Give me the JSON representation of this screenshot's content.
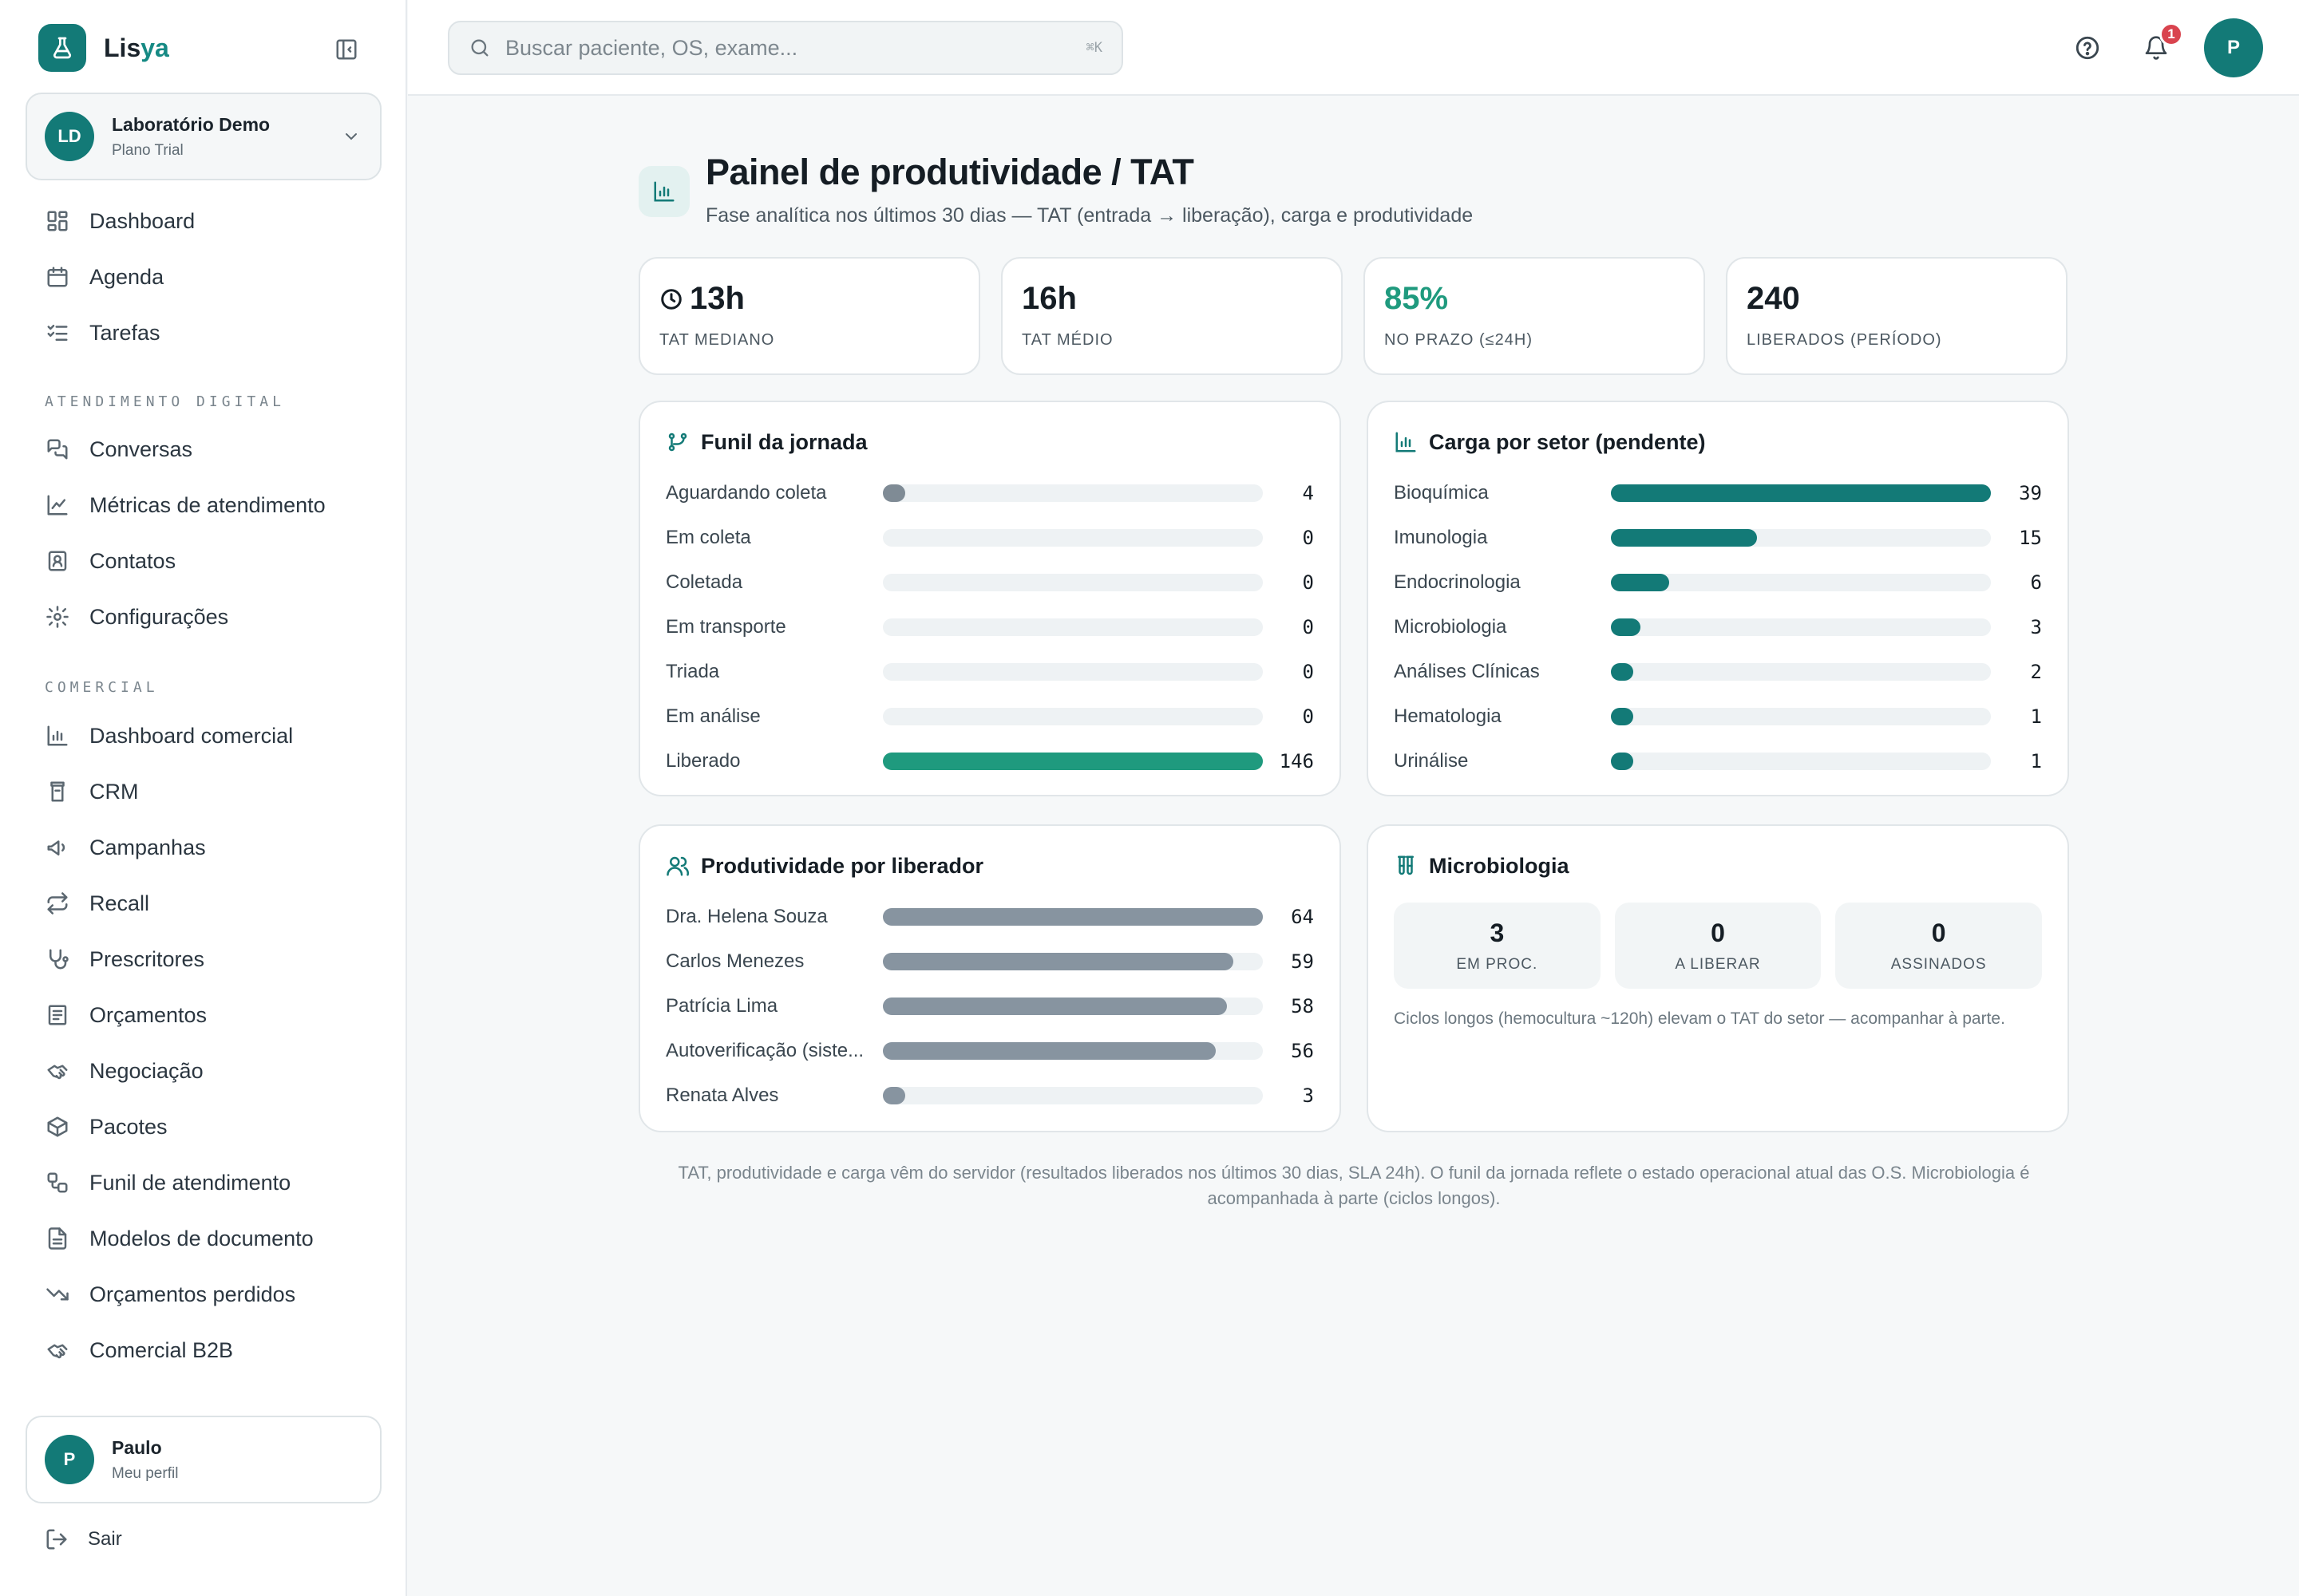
{
  "app": {
    "brand_prefix": "Lis",
    "brand_suffix": "ya"
  },
  "org": {
    "initials": "LD",
    "name": "Laboratório Demo",
    "plan": "Plano Trial"
  },
  "nav_main": [
    {
      "label": "Dashboard",
      "icon": "layout-dashboard-icon"
    },
    {
      "label": "Agenda",
      "icon": "calendar-icon"
    },
    {
      "label": "Tarefas",
      "icon": "list-checks-icon"
    }
  ],
  "section_digital": "ATENDIMENTO DIGITAL",
  "nav_digital": [
    {
      "label": "Conversas",
      "icon": "messages-icon"
    },
    {
      "label": "Métricas de atendimento",
      "icon": "line-chart-icon"
    },
    {
      "label": "Contatos",
      "icon": "contact-icon"
    },
    {
      "label": "Configurações",
      "icon": "gear-icon"
    }
  ],
  "section_comercial": "COMERCIAL",
  "nav_comercial": [
    {
      "label": "Dashboard comercial",
      "icon": "bar-chart-icon"
    },
    {
      "label": "CRM",
      "icon": "crm-icon"
    },
    {
      "label": "Campanhas",
      "icon": "megaphone-icon"
    },
    {
      "label": "Recall",
      "icon": "repeat-icon"
    },
    {
      "label": "Prescritores",
      "icon": "stethoscope-icon"
    },
    {
      "label": "Orçamentos",
      "icon": "receipt-icon"
    },
    {
      "label": "Negociação",
      "icon": "handshake-icon"
    },
    {
      "label": "Pacotes",
      "icon": "package-icon"
    },
    {
      "label": "Funil de atendimento",
      "icon": "workflow-icon"
    },
    {
      "label": "Modelos de documento",
      "icon": "file-text-icon"
    },
    {
      "label": "Orçamentos perdidos",
      "icon": "trending-down-icon"
    },
    {
      "label": "Comercial B2B",
      "icon": "handshake-icon"
    }
  ],
  "user": {
    "initial": "P",
    "name": "Paulo",
    "subtitle": "Meu perfil"
  },
  "logout_label": "Sair",
  "search": {
    "placeholder": "Buscar paciente, OS, exame...",
    "shortcut": "⌘K"
  },
  "notifications": {
    "count": "1"
  },
  "top_avatar": "P",
  "page": {
    "title": "Painel de produtividade / TAT",
    "subtitle": "Fase analítica nos últimos 30 dias — TAT (entrada → liberação), carga e produtividade"
  },
  "kpis": [
    {
      "value": "13h",
      "label": "TAT MEDIANO",
      "has_clock": true
    },
    {
      "value": "16h",
      "label": "TAT MÉDIO"
    },
    {
      "value": "85%",
      "label": "NO PRAZO (≤24H)",
      "highlight": true
    },
    {
      "value": "240",
      "label": "LIBERADOS (PERÍODO)"
    }
  ],
  "funil": {
    "title": "Funil da jornada",
    "color": "#1f9a7e",
    "max": 146,
    "rows": [
      {
        "label": "Aguardando coleta",
        "value": 4,
        "color": "#7f8b95"
      },
      {
        "label": "Em coleta",
        "value": 0
      },
      {
        "label": "Coletada",
        "value": 0
      },
      {
        "label": "Em transporte",
        "value": 0
      },
      {
        "label": "Triada",
        "value": 0
      },
      {
        "label": "Em análise",
        "value": 0
      },
      {
        "label": "Liberado",
        "value": 146
      }
    ]
  },
  "carga": {
    "title": "Carga por setor (pendente)",
    "color": "#137a77",
    "max": 39,
    "rows": [
      {
        "label": "Bioquímica",
        "value": 39
      },
      {
        "label": "Imunologia",
        "value": 15
      },
      {
        "label": "Endocrinologia",
        "value": 6
      },
      {
        "label": "Microbiologia",
        "value": 3
      },
      {
        "label": "Análises Clínicas",
        "value": 2
      },
      {
        "label": "Hematologia",
        "value": 1
      },
      {
        "label": "Urinálise",
        "value": 1
      }
    ]
  },
  "produtividade": {
    "title": "Produtividade por liberador",
    "color": "#8794a0",
    "max": 64,
    "rows": [
      {
        "label": "Dra. Helena Souza",
        "value": 64
      },
      {
        "label": "Carlos Menezes",
        "value": 59
      },
      {
        "label": "Patrícia Lima",
        "value": 58
      },
      {
        "label": "Autoverificação (siste...",
        "value": 56
      },
      {
        "label": "Renata Alves",
        "value": 3
      }
    ]
  },
  "micro": {
    "title": "Microbiologia",
    "stats": [
      {
        "value": "3",
        "label": "EM PROC."
      },
      {
        "value": "0",
        "label": "A LIBERAR"
      },
      {
        "value": "0",
        "label": "ASSINADOS"
      }
    ],
    "note": "Ciclos longos (hemocultura ~120h) elevam o TAT do setor — acompanhar à parte."
  },
  "footnote": "TAT, produtividade e carga vêm do servidor (resultados liberados nos últimos 30 dias, SLA 24h). O funil da jornada reflete o estado operacional atual das O.S. Microbiologia é acompanhada à parte (ciclos longos)."
}
